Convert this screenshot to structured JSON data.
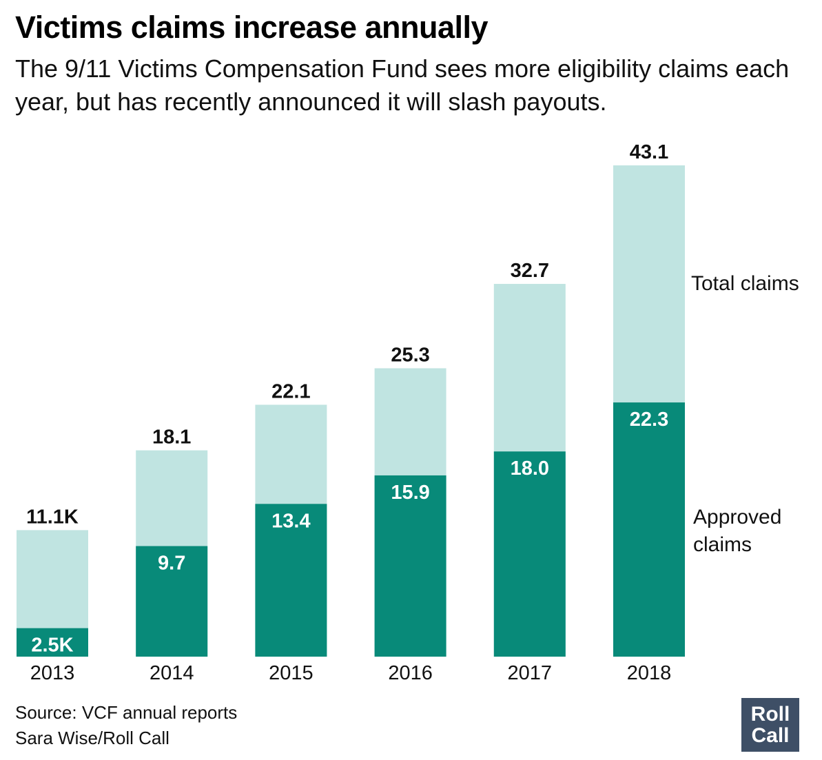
{
  "title": "Victims claims increase annually",
  "subtitle": "The 9/11 Victims Compensation Fund sees more eligibility claims each year, but has recently announced it will slash payouts.",
  "source_line": "Source: VCF annual reports",
  "credit_line": "Sara Wise/Roll Call",
  "logo": {
    "line1": "Roll",
    "line2": "Call"
  },
  "colors": {
    "total": "#c0e4e1",
    "approved": "#088a79",
    "logo_bg": "#3e4f66"
  },
  "chart_data": {
    "type": "bar",
    "stacked": "overlay",
    "categories": [
      "2013",
      "2014",
      "2015",
      "2016",
      "2017",
      "2018"
    ],
    "series": [
      {
        "name": "Total claims",
        "values": [
          11.1,
          18.1,
          22.1,
          25.3,
          32.7,
          43.1
        ],
        "labels": [
          "11.1K",
          "18.1",
          "22.1",
          "25.3",
          "32.7",
          "43.1"
        ]
      },
      {
        "name": "Approved claims",
        "values": [
          2.5,
          9.7,
          13.4,
          15.9,
          18.0,
          22.3
        ],
        "labels": [
          "2.5K",
          "9.7",
          "13.4",
          "15.9",
          "18.0",
          "22.3"
        ]
      }
    ],
    "legend": {
      "total": "Total claims",
      "approved_line1": "Approved",
      "approved_line2": "claims"
    },
    "grid": false
  }
}
